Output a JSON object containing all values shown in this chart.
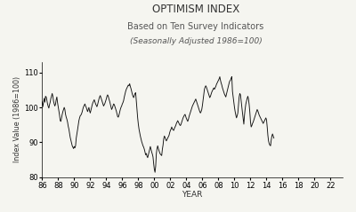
{
  "title": "OPTIMISM INDEX",
  "subtitle1": "Based on Ten Survey Indicators",
  "subtitle2": "(Seasonally Adjusted 1986=100)",
  "xlabel": "YEAR",
  "ylabel": "Index Value (1986=100)",
  "ylim": [
    80,
    113
  ],
  "yticks": [
    80,
    90,
    100,
    110
  ],
  "xtick_labels": [
    "86",
    "88",
    "90",
    "92",
    "94",
    "96",
    "98",
    "00",
    "02",
    "04",
    "06",
    "08",
    "10",
    "12",
    "14",
    "16",
    "18",
    "20",
    "22"
  ],
  "line_color": "#111111",
  "bg_color": "#f5f5f0",
  "title_color": "#333333",
  "subtitle_color": "#555555",
  "values": [
    101.6,
    100.2,
    101.4,
    102.6,
    101.5,
    103.2,
    103.0,
    102.1,
    101.0,
    100.3,
    99.8,
    100.8,
    101.5,
    102.6,
    103.2,
    104.0,
    103.2,
    101.8,
    101.0,
    100.4,
    101.0,
    102.2,
    103.0,
    101.4,
    100.2,
    99.0,
    97.8,
    96.2,
    96.0,
    97.0,
    98.0,
    98.8,
    99.4,
    100.0,
    99.4,
    98.0,
    97.2,
    96.6,
    95.8,
    94.6,
    93.8,
    92.6,
    91.4,
    90.6,
    89.8,
    89.0,
    88.6,
    88.2,
    88.8,
    88.4,
    89.0,
    91.2,
    92.4,
    93.6,
    95.0,
    96.2,
    97.0,
    97.6,
    97.8,
    98.2,
    98.8,
    99.6,
    100.2,
    100.6,
    101.0,
    100.4,
    100.0,
    99.4,
    98.8,
    99.4,
    100.0,
    99.0,
    98.4,
    99.2,
    100.0,
    100.8,
    101.4,
    101.8,
    102.2,
    101.6,
    101.0,
    100.6,
    100.2,
    100.8,
    101.6,
    102.4,
    103.0,
    103.4,
    102.8,
    102.2,
    101.6,
    101.0,
    100.4,
    100.8,
    101.2,
    101.8,
    102.4,
    103.2,
    103.6,
    103.2,
    102.4,
    101.8,
    101.0,
    100.2,
    99.4,
    99.8,
    100.4,
    101.0,
    100.8,
    100.2,
    99.6,
    99.0,
    98.2,
    97.4,
    97.2,
    97.8,
    98.6,
    99.4,
    100.0,
    100.4,
    101.0,
    101.4,
    102.0,
    103.0,
    103.8,
    104.6,
    105.2,
    105.6,
    106.0,
    106.4,
    106.2,
    106.8,
    106.0,
    105.4,
    104.6,
    103.8,
    103.2,
    102.8,
    103.4,
    104.0,
    104.2,
    101.8,
    99.2,
    97.0,
    95.2,
    93.8,
    92.8,
    91.8,
    91.0,
    90.2,
    89.6,
    89.0,
    88.6,
    88.0,
    87.2,
    86.4,
    86.8,
    86.0,
    85.6,
    86.4,
    87.2,
    88.0,
    88.8,
    88.0,
    87.2,
    86.6,
    85.8,
    83.8,
    82.2,
    81.4,
    83.2,
    86.8,
    88.2,
    89.0,
    88.2,
    87.6,
    87.0,
    86.6,
    86.4,
    86.2,
    88.0,
    89.2,
    91.0,
    91.8,
    91.4,
    90.8,
    90.4,
    90.8,
    91.2,
    91.6,
    92.0,
    92.8,
    93.4,
    93.8,
    94.4,
    93.8,
    93.6,
    93.4,
    94.0,
    94.4,
    94.8,
    95.4,
    95.8,
    96.2,
    95.8,
    95.4,
    95.0,
    94.8,
    95.2,
    95.8,
    96.4,
    97.0,
    97.4,
    97.8,
    98.0,
    97.4,
    96.8,
    96.4,
    96.0,
    96.6,
    97.4,
    98.0,
    98.6,
    99.2,
    99.8,
    100.4,
    100.8,
    101.2,
    101.6,
    102.0,
    102.4,
    101.8,
    101.2,
    100.6,
    100.0,
    99.4,
    98.8,
    98.4,
    98.8,
    99.4,
    100.6,
    102.2,
    103.8,
    105.2,
    105.8,
    106.2,
    105.8,
    105.2,
    104.6,
    104.0,
    103.4,
    102.8,
    103.2,
    103.8,
    104.4,
    104.8,
    105.2,
    105.6,
    105.2,
    105.6,
    106.0,
    106.6,
    107.0,
    107.4,
    107.8,
    108.2,
    108.8,
    107.8,
    107.0,
    106.4,
    105.6,
    105.0,
    104.4,
    103.8,
    103.4,
    103.0,
    103.8,
    104.6,
    105.4,
    106.2,
    107.0,
    107.6,
    107.8,
    108.4,
    108.8,
    104.6,
    103.0,
    101.4,
    100.0,
    98.8,
    97.8,
    97.0,
    97.6,
    98.4,
    100.6,
    103.0,
    104.0,
    103.6,
    101.8,
    100.0,
    98.4,
    96.8,
    95.2,
    97.8,
    99.6,
    101.0,
    101.8,
    102.6,
    103.2,
    102.4,
    100.8,
    98.6,
    95.8,
    94.4,
    94.8,
    95.4,
    95.8,
    96.4,
    97.0,
    97.6,
    98.2,
    98.8,
    99.4,
    99.0,
    98.4,
    97.8,
    97.4,
    97.0,
    96.6,
    96.2,
    95.8,
    95.4,
    95.8,
    96.2,
    96.6,
    97.0,
    96.4,
    94.4,
    92.0,
    90.4,
    89.6,
    89.2,
    89.0,
    90.6,
    91.8,
    92.4,
    91.8,
    91.2
  ]
}
